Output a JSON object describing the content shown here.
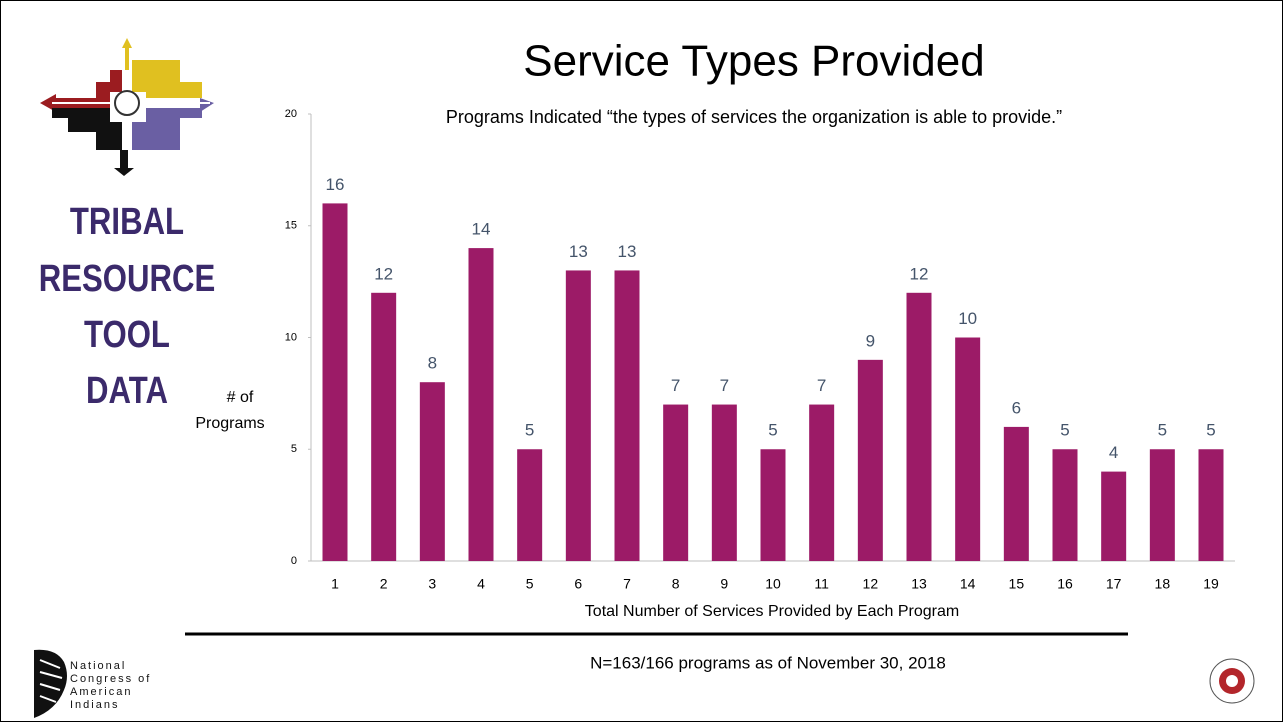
{
  "chart_data": {
    "type": "bar",
    "title": "Service Types Provided",
    "subtitle": "Programs Indicated “the types of services the organization is able to provide.”",
    "y_label": [
      "# of",
      "Programs"
    ],
    "x_label": "Total Number of Services Provided by Each Program",
    "categories": [
      "1",
      "2",
      "3",
      "4",
      "5",
      "6",
      "7",
      "8",
      "9",
      "10",
      "11",
      "12",
      "13",
      "14",
      "15",
      "16",
      "17",
      "18",
      "19"
    ],
    "values": [
      16,
      12,
      8,
      14,
      5,
      13,
      13,
      7,
      7,
      5,
      7,
      9,
      12,
      10,
      6,
      5,
      4,
      5,
      5
    ],
    "color": "#9c1b67",
    "ylim": [
      0,
      20
    ],
    "yticks": [
      0,
      5,
      10,
      15,
      20
    ],
    "grid": false
  },
  "footnote": "N=163/166 programs as of November 30, 2018",
  "logo": {
    "lines": [
      "TRIBAL",
      "RESOURCE",
      "TOOL",
      "DATA"
    ]
  },
  "ncai": {
    "lines": [
      "National",
      "Congress of",
      "American",
      "Indians"
    ]
  }
}
